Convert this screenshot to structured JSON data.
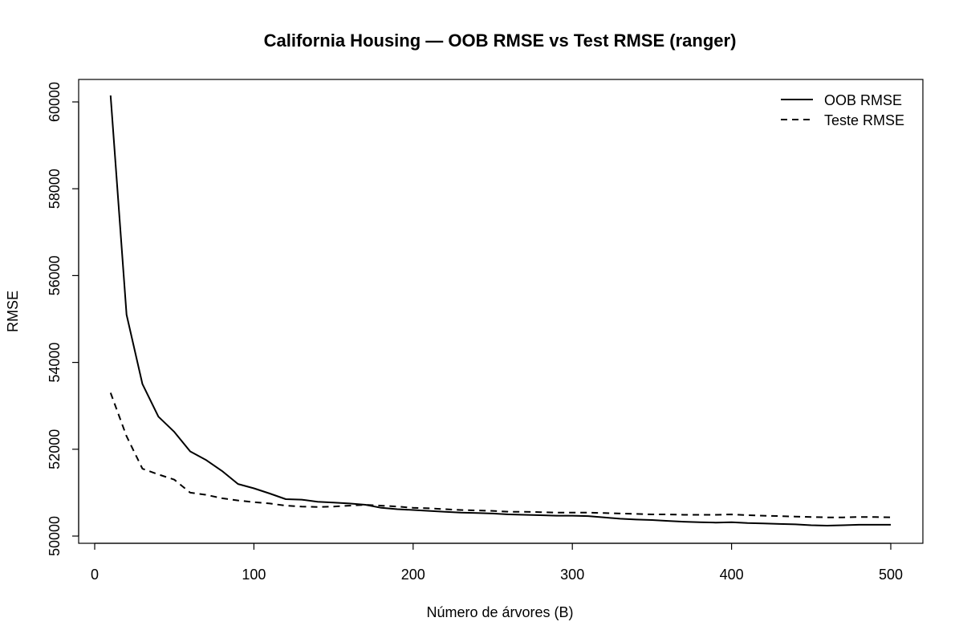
{
  "chart_data": {
    "type": "line",
    "title": "California Housing — OOB RMSE vs Test RMSE (ranger)",
    "xlabel": "Número de árvores (B)",
    "ylabel": "RMSE",
    "xlim": [
      0,
      500
    ],
    "ylim": [
      50000,
      60000
    ],
    "x_ticks": [
      0,
      100,
      200,
      300,
      400,
      500
    ],
    "y_ticks": [
      50000,
      52000,
      54000,
      56000,
      58000,
      60000
    ],
    "grid": false,
    "legend_position": "top-right",
    "x": [
      10,
      20,
      30,
      40,
      50,
      60,
      70,
      80,
      90,
      100,
      110,
      120,
      130,
      140,
      150,
      160,
      170,
      180,
      190,
      200,
      210,
      220,
      230,
      240,
      250,
      260,
      270,
      280,
      290,
      300,
      310,
      320,
      330,
      340,
      350,
      360,
      370,
      380,
      390,
      400,
      410,
      420,
      430,
      440,
      450,
      460,
      470,
      480,
      490,
      500
    ],
    "series": [
      {
        "name": "OOB RMSE",
        "style": "solid",
        "values": [
          60150,
          55100,
          53500,
          52750,
          52400,
          51950,
          51750,
          51500,
          51200,
          51100,
          50980,
          50850,
          50840,
          50790,
          50770,
          50750,
          50720,
          50650,
          50620,
          50600,
          50580,
          50560,
          50540,
          50530,
          50520,
          50500,
          50490,
          50480,
          50470,
          50470,
          50460,
          50430,
          50400,
          50380,
          50370,
          50350,
          50330,
          50320,
          50310,
          50320,
          50300,
          50290,
          50280,
          50270,
          50250,
          50240,
          50250,
          50260,
          50260,
          50260
        ]
      },
      {
        "name": "Teste RMSE",
        "style": "dashed",
        "values": [
          53300,
          52300,
          51550,
          51420,
          51300,
          51000,
          50950,
          50870,
          50820,
          50780,
          50750,
          50700,
          50680,
          50670,
          50680,
          50700,
          50720,
          50700,
          50680,
          50650,
          50640,
          50620,
          50600,
          50590,
          50580,
          50560,
          50560,
          50550,
          50540,
          50540,
          50540,
          50530,
          50520,
          50510,
          50500,
          50500,
          50490,
          50490,
          50490,
          50500,
          50480,
          50470,
          50460,
          50450,
          50440,
          50430,
          50430,
          50440,
          50440,
          50430
        ]
      }
    ]
  }
}
